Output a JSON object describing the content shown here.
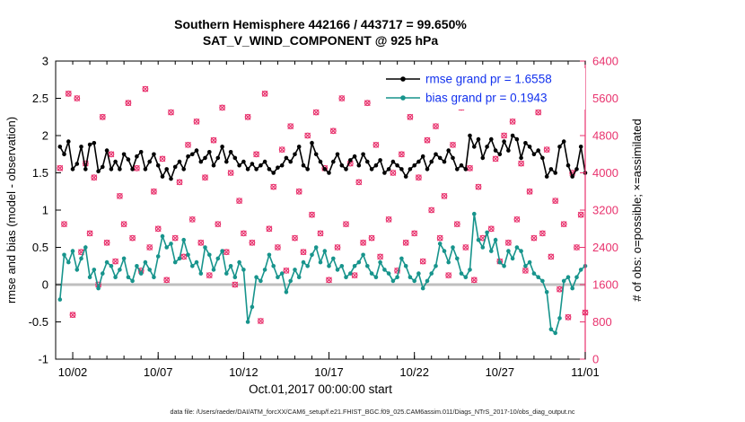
{
  "title": {
    "line1": "Southern Hemisphere 442166 / 443717 = 99.650%",
    "line2": "SAT_V_WIND_COMPONENT @ 925 hPa"
  },
  "legend": {
    "items": [
      {
        "label": "rmse grand pr = 1.6558",
        "series": "rmse"
      },
      {
        "label": "bias grand pr = 0.1943",
        "series": "bias"
      }
    ]
  },
  "footer": "data file: /Users/raeder/DAI/ATM_forcXX/CAM6_setup/f.e21.FHIST_BGC.f09_025.CAM6assim.011/Diags_NTrS_2017-10/obs_diag_output.nc",
  "colors": {
    "rmse": "#000000",
    "bias": "#17948c",
    "obs": "#e8326d",
    "zero_line": "#bfbfbf",
    "legend_text": "#1332ee"
  },
  "chart_data": {
    "type": "line",
    "title": "Southern Hemisphere 442166 / 443717 = 99.650%",
    "subtitle": "SAT_V_WIND_COMPONENT @ 925 hPa",
    "xlabel": "Oct.01,2017 00:00:00 start",
    "ylabel_left": "rmse and bias (model - observation)",
    "ylabel_right": "# of obs: o=possible; ×=assimilated",
    "ylim_left": [
      -1,
      3
    ],
    "yticks_left": [
      -1,
      -0.5,
      0,
      0.5,
      1,
      1.5,
      2,
      2.5,
      3
    ],
    "ylim_right": [
      0,
      6400
    ],
    "yticks_right": [
      0,
      800,
      1600,
      2400,
      3200,
      4000,
      4800,
      5600,
      6400
    ],
    "xlim_days": [
      0,
      31
    ],
    "x_start_day": 0.25,
    "x_step_days": 0.25,
    "xticks": [
      {
        "day": 1,
        "label": "10/02"
      },
      {
        "day": 6,
        "label": "10/07"
      },
      {
        "day": 11,
        "label": "10/12"
      },
      {
        "day": 16,
        "label": "10/17"
      },
      {
        "day": 21,
        "label": "10/22"
      },
      {
        "day": 26,
        "label": "10/27"
      },
      {
        "day": 31,
        "label": "11/01"
      }
    ],
    "rmse_grand": 1.6558,
    "bias_grand": 0.1943,
    "obs_possible_total": 443717,
    "obs_assimilated_total": 442166,
    "series": [
      {
        "name": "rmse",
        "type": "line",
        "axis": "left",
        "marker": "dot",
        "values": [
          1.85,
          1.75,
          1.92,
          1.55,
          1.62,
          1.85,
          1.55,
          1.88,
          1.9,
          1.52,
          1.58,
          1.8,
          1.55,
          1.65,
          1.55,
          1.75,
          1.68,
          1.55,
          1.72,
          1.78,
          1.55,
          1.65,
          1.75,
          1.6,
          1.45,
          1.55,
          1.42,
          1.58,
          1.65,
          1.55,
          1.72,
          1.75,
          1.8,
          1.65,
          1.7,
          1.78,
          1.6,
          1.7,
          1.85,
          1.65,
          1.78,
          1.7,
          1.6,
          1.65,
          1.55,
          1.62,
          1.55,
          1.6,
          1.65,
          1.55,
          1.5,
          1.57,
          1.6,
          1.7,
          1.65,
          1.75,
          1.85,
          1.6,
          1.55,
          1.9,
          1.75,
          1.65,
          1.55,
          1.5,
          1.65,
          1.75,
          1.6,
          1.55,
          1.67,
          1.72,
          1.6,
          1.75,
          1.65,
          1.55,
          1.6,
          1.67,
          1.5,
          1.55,
          1.65,
          1.6,
          1.55,
          1.45,
          1.55,
          1.6,
          1.65,
          1.72,
          1.55,
          1.65,
          1.75,
          1.7,
          1.65,
          1.8,
          1.7,
          1.55,
          1.6,
          1.55,
          2.0,
          1.85,
          1.95,
          1.7,
          1.85,
          1.95,
          1.8,
          1.75,
          1.92,
          1.8,
          2.0,
          1.95,
          1.7,
          1.9,
          1.85,
          1.75,
          1.8,
          1.7,
          1.45,
          1.55,
          1.5,
          1.85,
          1.92,
          1.6,
          1.45,
          1.55,
          1.85,
          1.5
        ]
      },
      {
        "name": "bias",
        "type": "line",
        "axis": "left",
        "marker": "dot",
        "values": [
          -0.2,
          0.4,
          0.3,
          0.45,
          0.2,
          0.35,
          0.5,
          0.1,
          0.2,
          -0.05,
          0.15,
          0.3,
          0.25,
          0.1,
          0.2,
          0.35,
          0.1,
          0.05,
          0.25,
          0.15,
          0.3,
          0.2,
          0.1,
          0.38,
          0.65,
          0.5,
          0.55,
          0.3,
          0.35,
          0.6,
          0.4,
          0.25,
          0.3,
          0.15,
          0.5,
          0.4,
          0.2,
          0.35,
          0.45,
          0.15,
          0.25,
          0.1,
          0.3,
          0.2,
          -0.5,
          -0.3,
          0.1,
          0.05,
          0.2,
          0.4,
          0.25,
          0.1,
          0.15,
          -0.1,
          0.05,
          0.2,
          0.1,
          0.3,
          0.25,
          0.4,
          0.5,
          0.3,
          0.45,
          0.25,
          0.35,
          0.2,
          0.25,
          0.1,
          0.15,
          0.25,
          0.3,
          0.4,
          0.25,
          0.15,
          0.1,
          0.3,
          0.2,
          0.15,
          0.05,
          0.1,
          0.35,
          0.25,
          0.1,
          0.05,
          0.15,
          -0.05,
          0.05,
          0.15,
          0.25,
          0.55,
          0.45,
          0.3,
          0.5,
          0.35,
          0.15,
          0.1,
          0.2,
          0.95,
          0.6,
          0.5,
          0.7,
          0.45,
          0.6,
          0.3,
          0.25,
          0.45,
          0.35,
          0.5,
          0.45,
          0.25,
          0.3,
          0.15,
          0.1,
          0.05,
          -0.1,
          -0.6,
          -0.65,
          -0.45,
          0.05,
          0.1,
          -0.05,
          0.1,
          0.2,
          0.25
        ]
      },
      {
        "name": "possible",
        "type": "scatter",
        "axis": "right",
        "marker": "o",
        "values": [
          4100,
          2900,
          5700,
          950,
          5600,
          2300,
          4200,
          2700,
          3900,
          1600,
          5200,
          2500,
          4400,
          2100,
          3500,
          2900,
          5500,
          2600,
          4100,
          1900,
          5800,
          2400,
          3600,
          2800,
          4300,
          1700,
          5300,
          2600,
          3800,
          2200,
          4600,
          3000,
          5100,
          2500,
          3900,
          1800,
          4700,
          2900,
          5400,
          2300,
          4000,
          1600,
          3400,
          2700,
          5200,
          2500,
          4400,
          820,
          5700,
          2800,
          3700,
          2400,
          4500,
          1900,
          5000,
          2600,
          3600,
          2300,
          4800,
          3100,
          5300,
          2700,
          4100,
          1700,
          4900,
          2400,
          5600,
          2900,
          4200,
          1800,
          3800,
          2500,
          5500,
          2600,
          4600,
          2200,
          5800,
          3000,
          4000,
          1900,
          4400,
          2500,
          5200,
          2700,
          3900,
          2100,
          4700,
          3200,
          5000,
          2600,
          3500,
          1800,
          4600,
          2900,
          5400,
          2400,
          4100,
          1700,
          3700,
          2600,
          5600,
          2800,
          4300,
          2100,
          4800,
          2500,
          5100,
          3000,
          4200,
          1900,
          3600,
          2600,
          5300,
          2700,
          4500,
          2200,
          3400,
          1500,
          2900,
          900,
          4000,
          2400,
          3100,
          1000
        ]
      },
      {
        "name": "assimilated",
        "type": "scatter",
        "axis": "right",
        "marker": "x",
        "values": [
          4100,
          2900,
          5700,
          950,
          5600,
          2300,
          4200,
          2700,
          3900,
          1600,
          5200,
          2500,
          4400,
          2100,
          3500,
          2900,
          5500,
          2600,
          4100,
          1900,
          5800,
          2400,
          3600,
          2800,
          4300,
          1700,
          5300,
          2600,
          3800,
          2200,
          4600,
          3000,
          5100,
          2500,
          3900,
          1800,
          4700,
          2900,
          5400,
          2300,
          4000,
          1600,
          3400,
          2700,
          5200,
          2500,
          4400,
          820,
          5700,
          2800,
          3700,
          2400,
          4500,
          1900,
          5000,
          2600,
          3600,
          2300,
          4800,
          3100,
          5300,
          2700,
          4100,
          1700,
          4900,
          2400,
          5600,
          2900,
          4200,
          1800,
          3800,
          2500,
          5500,
          2600,
          4600,
          2200,
          5800,
          3000,
          4000,
          1900,
          4400,
          2500,
          5200,
          2700,
          3900,
          2100,
          4700,
          3200,
          5000,
          2600,
          3500,
          1800,
          4600,
          2900,
          5400,
          2400,
          4100,
          1700,
          3700,
          2600,
          5600,
          2800,
          4300,
          2100,
          4800,
          2500,
          5100,
          3000,
          4200,
          1900,
          3600,
          2600,
          5300,
          2700,
          4500,
          2200,
          3400,
          1500,
          2900,
          900,
          4000,
          2400,
          3100,
          1000
        ]
      }
    ]
  }
}
